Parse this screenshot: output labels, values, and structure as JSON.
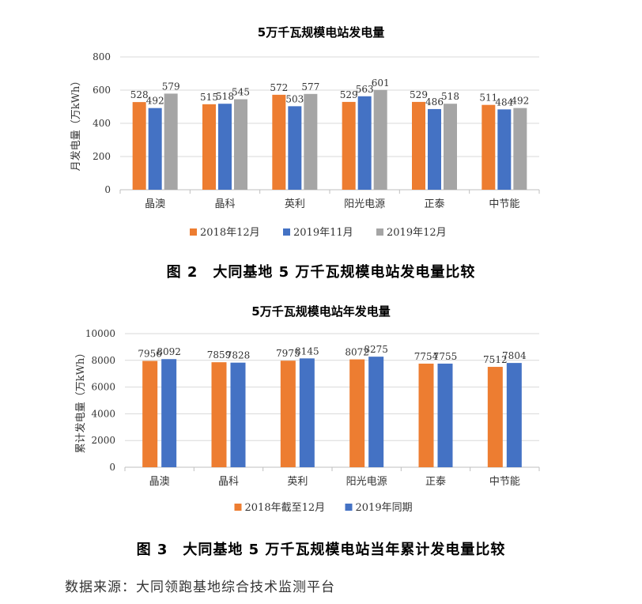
{
  "colors": {
    "s2018": "#ED7D31",
    "s2019_11": "#4472C4",
    "s2019_12": "#A5A5A5",
    "grid": "#D9D9D9",
    "axis": "#BFBFBF"
  },
  "source_text": "数据来源：大同领跑基地综合技术监测平台",
  "chart_data": [
    {
      "type": "bar",
      "title": "5万千瓦规模电站发电量",
      "caption": "图 2　大同基地 5 万千瓦规模电站发电量比较",
      "ylabel": "月发电量（万kWh）",
      "xlabel": "",
      "ylim": [
        0,
        800
      ],
      "yticks": [
        0,
        200,
        400,
        600,
        800
      ],
      "grid": true,
      "legend": "bottom",
      "categories": [
        "晶澳",
        "晶科",
        "英利",
        "阳光电源",
        "正泰",
        "中节能"
      ],
      "series": [
        {
          "name": "2018年12月",
          "color": "#ED7D31",
          "values": [
            528,
            515,
            572,
            529,
            529,
            511
          ]
        },
        {
          "name": "2019年11月",
          "color": "#4472C4",
          "values": [
            492,
            518,
            503,
            563,
            486,
            484
          ]
        },
        {
          "name": "2019年12月",
          "color": "#A5A5A5",
          "values": [
            579,
            545,
            577,
            601,
            518,
            492
          ]
        }
      ]
    },
    {
      "type": "bar",
      "title": "5万千瓦规模电站年发电量",
      "caption": "图 3　大同基地 5 万千瓦规模电站当年累计发电量比较",
      "ylabel": "累计发电量（万kWh）",
      "xlabel": "",
      "ylim": [
        0,
        10000
      ],
      "yticks": [
        0,
        2000,
        4000,
        6000,
        8000,
        10000
      ],
      "grid": true,
      "legend": "bottom",
      "categories": [
        "晶澳",
        "晶科",
        "英利",
        "阳光电源",
        "正泰",
        "中节能"
      ],
      "series": [
        {
          "name": "2018年截至12月",
          "color": "#ED7D31",
          "values": [
            7956,
            7859,
            7975,
            8072,
            7754,
            7512
          ]
        },
        {
          "name": "2019年同期",
          "color": "#4472C4",
          "values": [
            8092,
            7828,
            8145,
            8275,
            7755,
            7804
          ]
        }
      ]
    }
  ]
}
